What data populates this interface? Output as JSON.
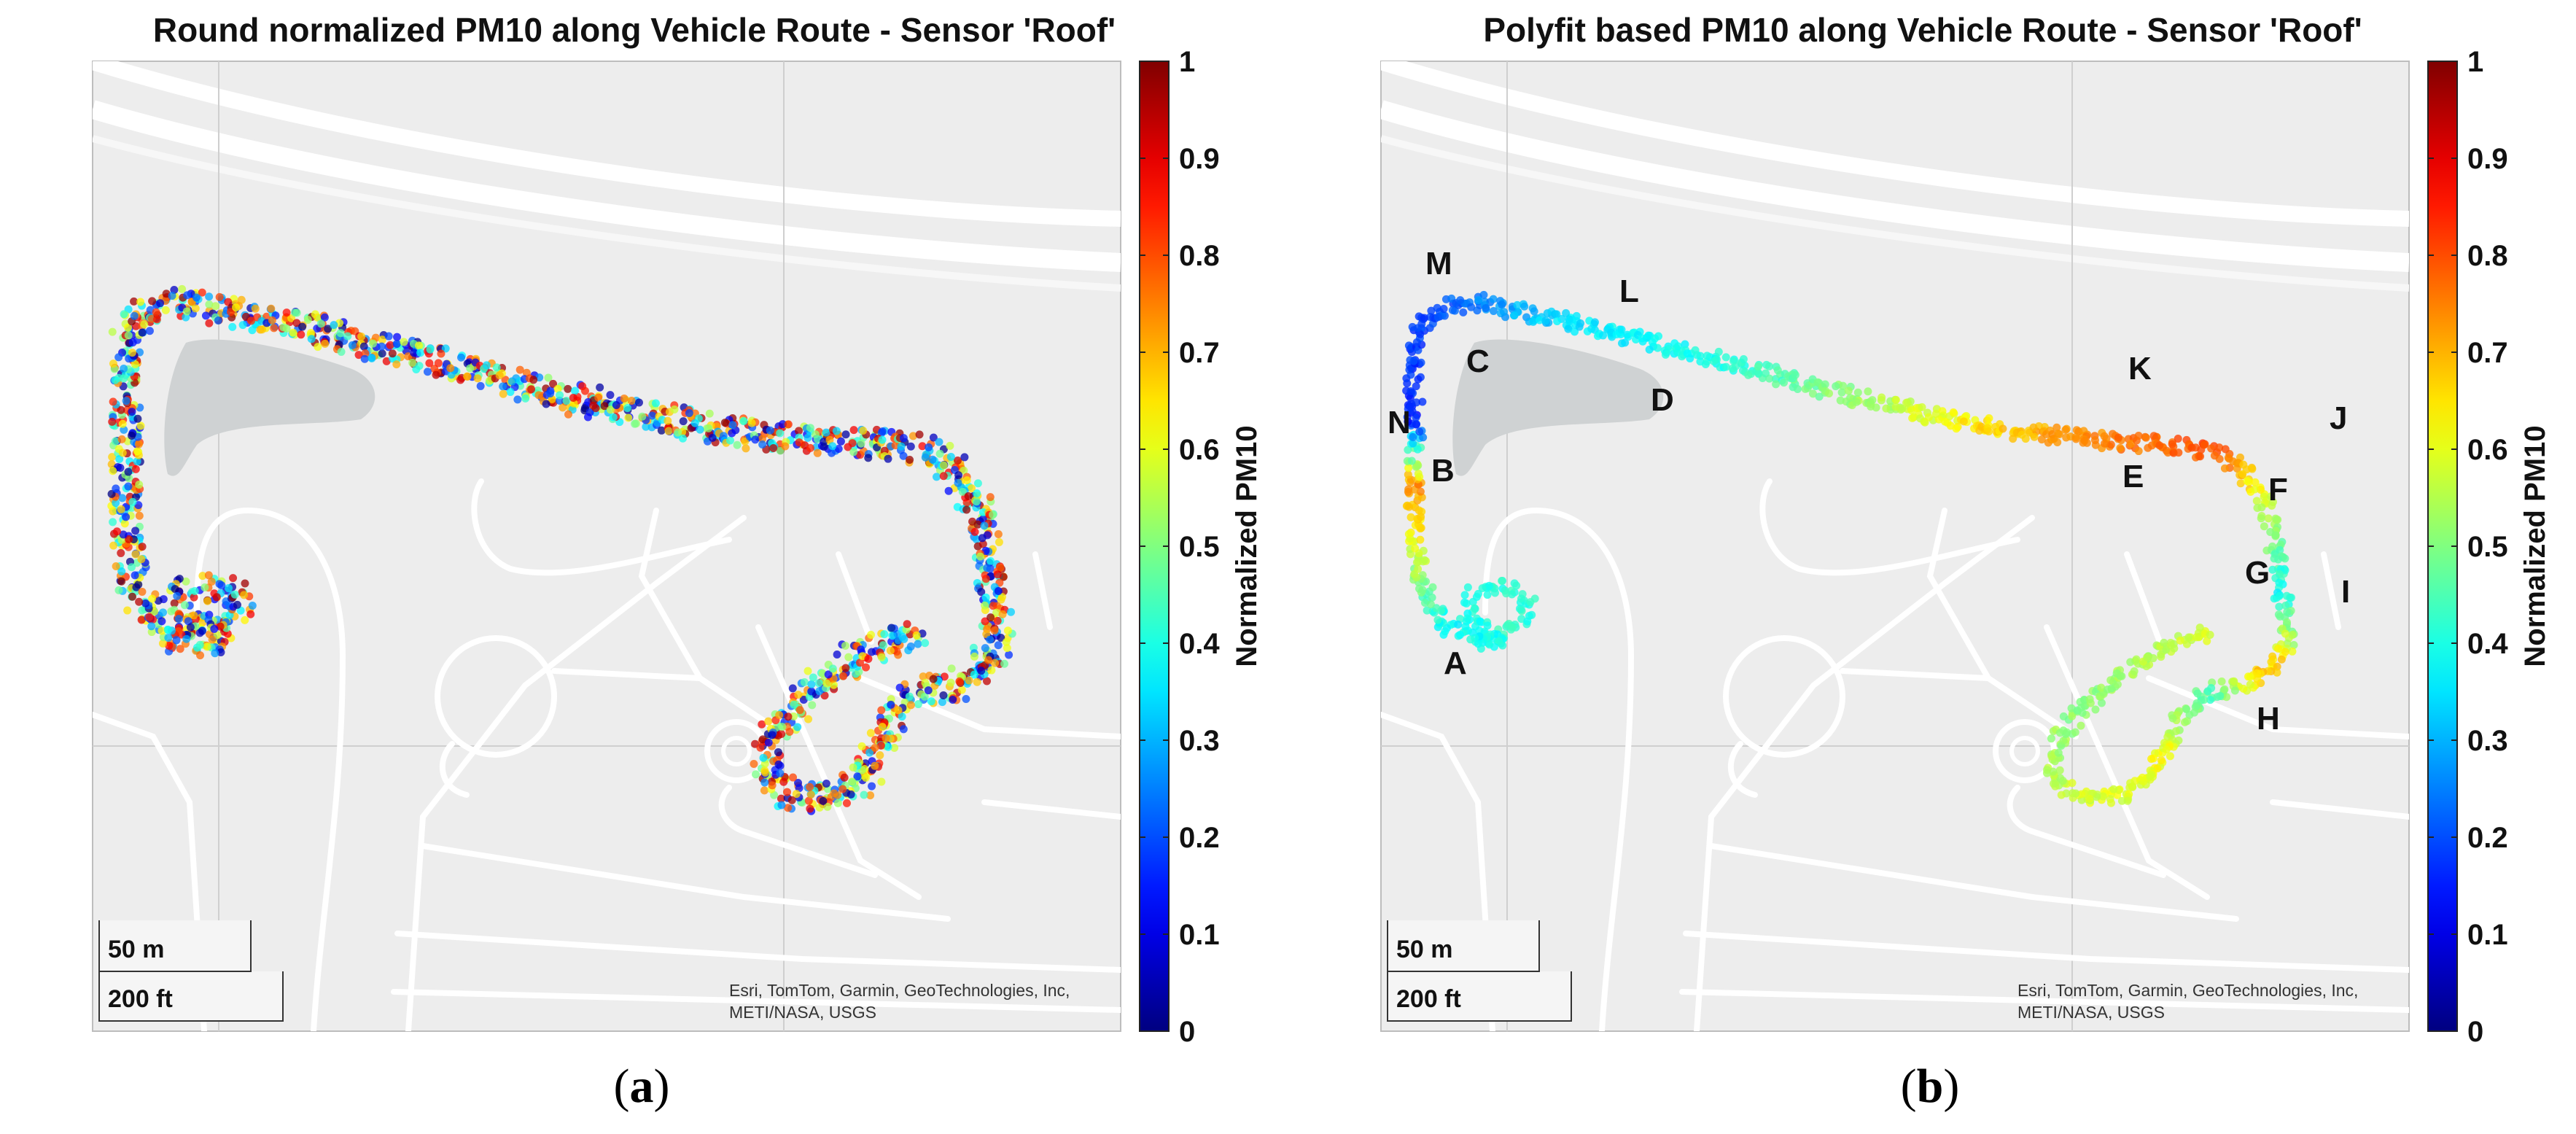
{
  "panels": [
    {
      "id": "a",
      "title": "Round normalized PM10 along Vehicle Route - Sensor 'Roof'",
      "caption_letter": "a",
      "colorbar": {
        "label": "Normalized PM10",
        "ticks": [
          "0",
          "0.1",
          "0.2",
          "0.3",
          "0.4",
          "0.5",
          "0.6",
          "0.7",
          "0.8",
          "0.9",
          "1"
        ],
        "colormap": "jet"
      },
      "scale_bar": {
        "metric": "50 m",
        "imperial": "200 ft"
      },
      "attribution": [
        "Esri, TomTom, Garmin, GeoTechnologies, Inc,",
        "METI/NASA, USGS"
      ],
      "route_style": "noisy",
      "point_labels": []
    },
    {
      "id": "b",
      "title": "Polyfit based PM10 along Vehicle Route - Sensor 'Roof'",
      "caption_letter": "b",
      "colorbar": {
        "label": "Normalized PM10",
        "ticks": [
          "0",
          "0.1",
          "0.2",
          "0.3",
          "0.4",
          "0.5",
          "0.6",
          "0.7",
          "0.8",
          "0.9",
          "1"
        ],
        "colormap": "jet"
      },
      "scale_bar": {
        "metric": "50 m",
        "imperial": "200 ft"
      },
      "attribution": [
        "Esri, TomTom, Garmin, GeoTechnologies, Inc,",
        "METI/NASA, USGS"
      ],
      "route_style": "smooth",
      "point_labels": [
        "A",
        "B",
        "C",
        "D",
        "E",
        "F",
        "G",
        "H",
        "I",
        "J",
        "K",
        "L",
        "M",
        "N"
      ]
    }
  ]
}
